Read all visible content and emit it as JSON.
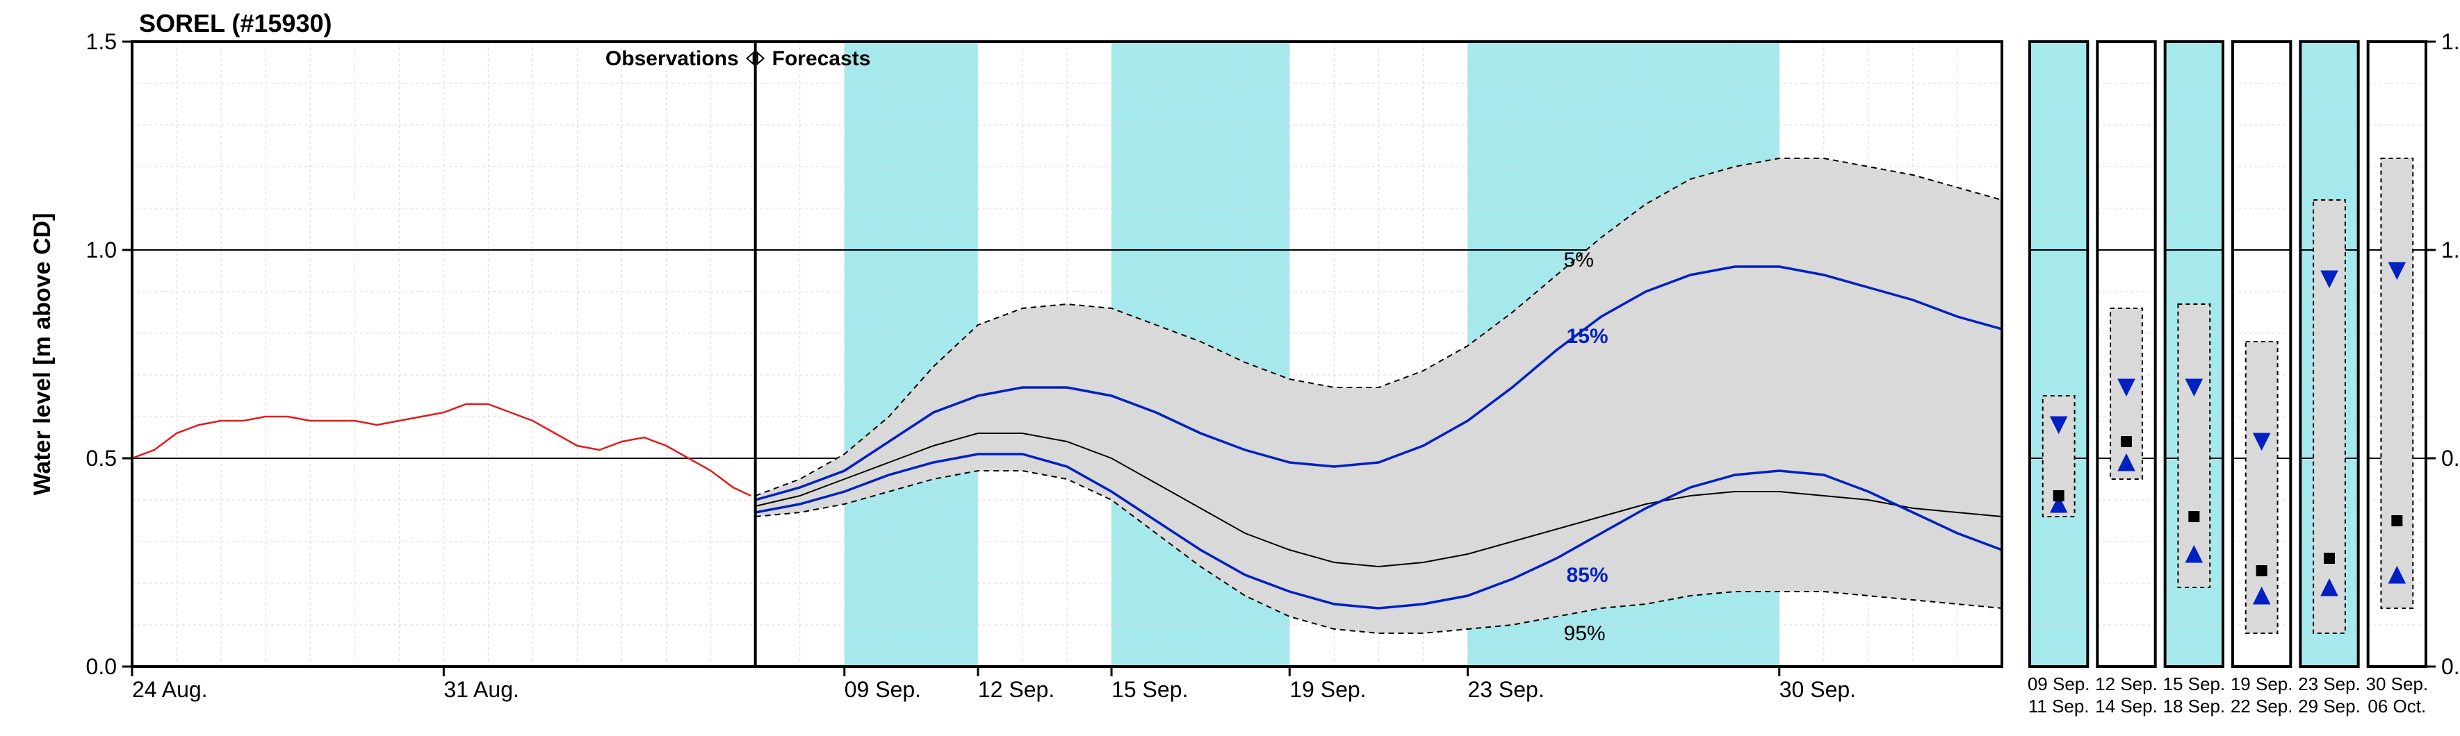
{
  "title": "SOREL (#15930)",
  "title_fontsize": 36,
  "title_fontweight": "bold",
  "ylabel": "Water level [m above CD]",
  "ylabel_fontsize": 34,
  "ylabel_fontweight": "bold",
  "dividers": {
    "obs_label": "Observations",
    "fc_label": "Forecasts",
    "label_fontsize": 30,
    "label_fontweight": "bold"
  },
  "main_chart": {
    "type": "line_band",
    "ylim": [
      0.0,
      1.5
    ],
    "ymajor": [
      0.0,
      0.5,
      1.0,
      1.5
    ],
    "tick_fontsize": 32,
    "grid_minor_color": "#d9d9d9",
    "grid_major_color": "#000000",
    "grid_minor_width": 1,
    "grid_major_width": 2,
    "background_color": "#ffffff",
    "border_color": "#000000",
    "border_width": 4,
    "x_day_min": 0,
    "x_day_max": 42,
    "divider_x_day": 14,
    "xtick_days": [
      0,
      7,
      16,
      19,
      22,
      26,
      30,
      37
    ],
    "xtick_labels": [
      "24 Aug.",
      "31 Aug.",
      "09 Sep.",
      "12 Sep.",
      "15 Sep.",
      "19 Sep.",
      "23 Sep.",
      "30 Sep."
    ],
    "alt_bands_days": [
      [
        16,
        19
      ],
      [
        22,
        26
      ],
      [
        30,
        37
      ]
    ],
    "alt_band_color": "#a6e9ec",
    "obs_line": {
      "color": "#e41a1c",
      "width": 2.5,
      "points": [
        [
          0,
          0.5
        ],
        [
          0.5,
          0.52
        ],
        [
          1,
          0.56
        ],
        [
          1.5,
          0.58
        ],
        [
          2,
          0.59
        ],
        [
          2.5,
          0.59
        ],
        [
          3,
          0.6
        ],
        [
          3.5,
          0.6
        ],
        [
          4,
          0.59
        ],
        [
          4.5,
          0.59
        ],
        [
          5,
          0.59
        ],
        [
          5.5,
          0.58
        ],
        [
          6,
          0.59
        ],
        [
          6.5,
          0.6
        ],
        [
          7,
          0.61
        ],
        [
          7.5,
          0.63
        ],
        [
          8,
          0.63
        ],
        [
          8.5,
          0.61
        ],
        [
          9,
          0.59
        ],
        [
          9.5,
          0.56
        ],
        [
          10,
          0.53
        ],
        [
          10.5,
          0.52
        ],
        [
          11,
          0.54
        ],
        [
          11.5,
          0.55
        ],
        [
          12,
          0.53
        ],
        [
          12.5,
          0.5
        ],
        [
          13,
          0.47
        ],
        [
          13.5,
          0.43
        ],
        [
          13.9,
          0.41
        ]
      ]
    },
    "band_5_95": {
      "fill": "#d9d9d9",
      "stroke": "#000000",
      "stroke_dash": "8 6",
      "stroke_width": 2,
      "upper": [
        [
          14,
          0.41
        ],
        [
          15,
          0.45
        ],
        [
          16,
          0.51
        ],
        [
          17,
          0.6
        ],
        [
          18,
          0.72
        ],
        [
          19,
          0.82
        ],
        [
          20,
          0.86
        ],
        [
          21,
          0.87
        ],
        [
          22,
          0.86
        ],
        [
          23,
          0.82
        ],
        [
          24,
          0.78
        ],
        [
          25,
          0.73
        ],
        [
          26,
          0.69
        ],
        [
          27,
          0.67
        ],
        [
          28,
          0.67
        ],
        [
          29,
          0.71
        ],
        [
          30,
          0.77
        ],
        [
          31,
          0.85
        ],
        [
          32,
          0.94
        ],
        [
          33,
          1.03
        ],
        [
          34,
          1.11
        ],
        [
          35,
          1.17
        ],
        [
          36,
          1.2
        ],
        [
          37,
          1.22
        ],
        [
          38,
          1.22
        ],
        [
          39,
          1.2
        ],
        [
          40,
          1.18
        ],
        [
          41,
          1.15
        ],
        [
          42,
          1.12
        ]
      ],
      "lower": [
        [
          14,
          0.36
        ],
        [
          15,
          0.37
        ],
        [
          16,
          0.39
        ],
        [
          17,
          0.42
        ],
        [
          18,
          0.45
        ],
        [
          19,
          0.47
        ],
        [
          20,
          0.47
        ],
        [
          21,
          0.45
        ],
        [
          22,
          0.4
        ],
        [
          23,
          0.32
        ],
        [
          24,
          0.24
        ],
        [
          25,
          0.17
        ],
        [
          26,
          0.12
        ],
        [
          27,
          0.09
        ],
        [
          28,
          0.08
        ],
        [
          29,
          0.08
        ],
        [
          30,
          0.09
        ],
        [
          31,
          0.1
        ],
        [
          32,
          0.12
        ],
        [
          33,
          0.14
        ],
        [
          34,
          0.15
        ],
        [
          35,
          0.17
        ],
        [
          36,
          0.18
        ],
        [
          37,
          0.18
        ],
        [
          38,
          0.18
        ],
        [
          39,
          0.17
        ],
        [
          40,
          0.16
        ],
        [
          41,
          0.15
        ],
        [
          42,
          0.14
        ]
      ],
      "label_upper": "5%",
      "label_lower": "95%",
      "label_x_day": 32,
      "label_fontsize": 30
    },
    "line_15": {
      "color": "#0020c2",
      "width": 3.5,
      "points": [
        [
          14,
          0.4
        ],
        [
          15,
          0.43
        ],
        [
          16,
          0.47
        ],
        [
          17,
          0.54
        ],
        [
          18,
          0.61
        ],
        [
          19,
          0.65
        ],
        [
          20,
          0.67
        ],
        [
          21,
          0.67
        ],
        [
          22,
          0.65
        ],
        [
          23,
          0.61
        ],
        [
          24,
          0.56
        ],
        [
          25,
          0.52
        ],
        [
          26,
          0.49
        ],
        [
          27,
          0.48
        ],
        [
          28,
          0.49
        ],
        [
          29,
          0.53
        ],
        [
          30,
          0.59
        ],
        [
          31,
          0.67
        ],
        [
          32,
          0.76
        ],
        [
          33,
          0.84
        ],
        [
          34,
          0.9
        ],
        [
          35,
          0.94
        ],
        [
          36,
          0.96
        ],
        [
          37,
          0.96
        ],
        [
          38,
          0.94
        ],
        [
          39,
          0.91
        ],
        [
          40,
          0.88
        ],
        [
          41,
          0.84
        ],
        [
          42,
          0.81
        ]
      ],
      "label": "15%",
      "label_x_day": 32,
      "label_fontsize": 30
    },
    "line_median": {
      "color": "#000000",
      "width": 2,
      "points": [
        [
          14,
          0.385
        ],
        [
          15,
          0.41
        ],
        [
          16,
          0.45
        ],
        [
          17,
          0.49
        ],
        [
          18,
          0.53
        ],
        [
          19,
          0.56
        ],
        [
          20,
          0.56
        ],
        [
          21,
          0.54
        ],
        [
          22,
          0.5
        ],
        [
          23,
          0.44
        ],
        [
          24,
          0.38
        ],
        [
          25,
          0.32
        ],
        [
          26,
          0.28
        ],
        [
          27,
          0.25
        ],
        [
          28,
          0.24
        ],
        [
          29,
          0.25
        ],
        [
          30,
          0.27
        ],
        [
          31,
          0.3
        ],
        [
          32,
          0.33
        ],
        [
          33,
          0.36
        ],
        [
          34,
          0.39
        ],
        [
          35,
          0.41
        ],
        [
          36,
          0.42
        ],
        [
          37,
          0.42
        ],
        [
          38,
          0.41
        ],
        [
          39,
          0.4
        ],
        [
          40,
          0.38
        ],
        [
          41,
          0.37
        ],
        [
          42,
          0.36
        ]
      ]
    },
    "line_85": {
      "color": "#0020c2",
      "width": 3.5,
      "points": [
        [
          14,
          0.37
        ],
        [
          15,
          0.39
        ],
        [
          16,
          0.42
        ],
        [
          17,
          0.46
        ],
        [
          18,
          0.49
        ],
        [
          19,
          0.51
        ],
        [
          20,
          0.51
        ],
        [
          21,
          0.48
        ],
        [
          22,
          0.42
        ],
        [
          23,
          0.35
        ],
        [
          24,
          0.28
        ],
        [
          25,
          0.22
        ],
        [
          26,
          0.18
        ],
        [
          27,
          0.15
        ],
        [
          28,
          0.14
        ],
        [
          29,
          0.15
        ],
        [
          30,
          0.17
        ],
        [
          31,
          0.21
        ],
        [
          32,
          0.26
        ],
        [
          33,
          0.32
        ],
        [
          34,
          0.38
        ],
        [
          35,
          0.43
        ],
        [
          36,
          0.46
        ],
        [
          37,
          0.47
        ],
        [
          38,
          0.46
        ],
        [
          39,
          0.42
        ],
        [
          40,
          0.37
        ],
        [
          41,
          0.32
        ],
        [
          42,
          0.28
        ]
      ],
      "label": "85%",
      "label_x_day": 32,
      "label_fontsize": 30
    }
  },
  "right_panels": {
    "count": 6,
    "ylim": [
      0.0,
      1.5
    ],
    "background_alt_color": "#a6e9ec",
    "background_color": "#ffffff",
    "border_color": "#000000",
    "border_width": 4,
    "tick_fontsize": 32,
    "xlabel_fontsize": 26,
    "box_stroke": "#000000",
    "box_dash": "6 5",
    "box_fill": "#d9d9d9",
    "square_color": "#000000",
    "square_size": 16,
    "tri_color_fill": "#0020c2",
    "tri_color_stroke": "#0020c2",
    "tri_size": 24,
    "panels": [
      {
        "alt": true,
        "label_top": "09 Sep.",
        "label_bot": "11 Sep.",
        "box_lo": 0.36,
        "box_hi": 0.65,
        "inner_lo": 0.39,
        "inner_hi": 0.58,
        "median": 0.41
      },
      {
        "alt": false,
        "label_top": "12 Sep.",
        "label_bot": "14 Sep.",
        "box_lo": 0.45,
        "box_hi": 0.86,
        "inner_lo": 0.49,
        "inner_hi": 0.67,
        "median": 0.54
      },
      {
        "alt": true,
        "label_top": "15 Sep.",
        "label_bot": "18 Sep.",
        "box_lo": 0.19,
        "box_hi": 0.87,
        "inner_lo": 0.27,
        "inner_hi": 0.67,
        "median": 0.36
      },
      {
        "alt": false,
        "label_top": "19 Sep.",
        "label_bot": "22 Sep.",
        "box_lo": 0.08,
        "box_hi": 0.78,
        "inner_lo": 0.17,
        "inner_hi": 0.54,
        "median": 0.23
      },
      {
        "alt": true,
        "label_top": "23 Sep.",
        "label_bot": "29 Sep.",
        "box_lo": 0.08,
        "box_hi": 1.12,
        "inner_lo": 0.19,
        "inner_hi": 0.93,
        "median": 0.26
      },
      {
        "alt": false,
        "label_top": "30 Sep.",
        "label_bot": "06 Oct.",
        "box_lo": 0.14,
        "box_hi": 1.22,
        "inner_lo": 0.22,
        "inner_hi": 0.95,
        "median": 0.35
      }
    ]
  }
}
